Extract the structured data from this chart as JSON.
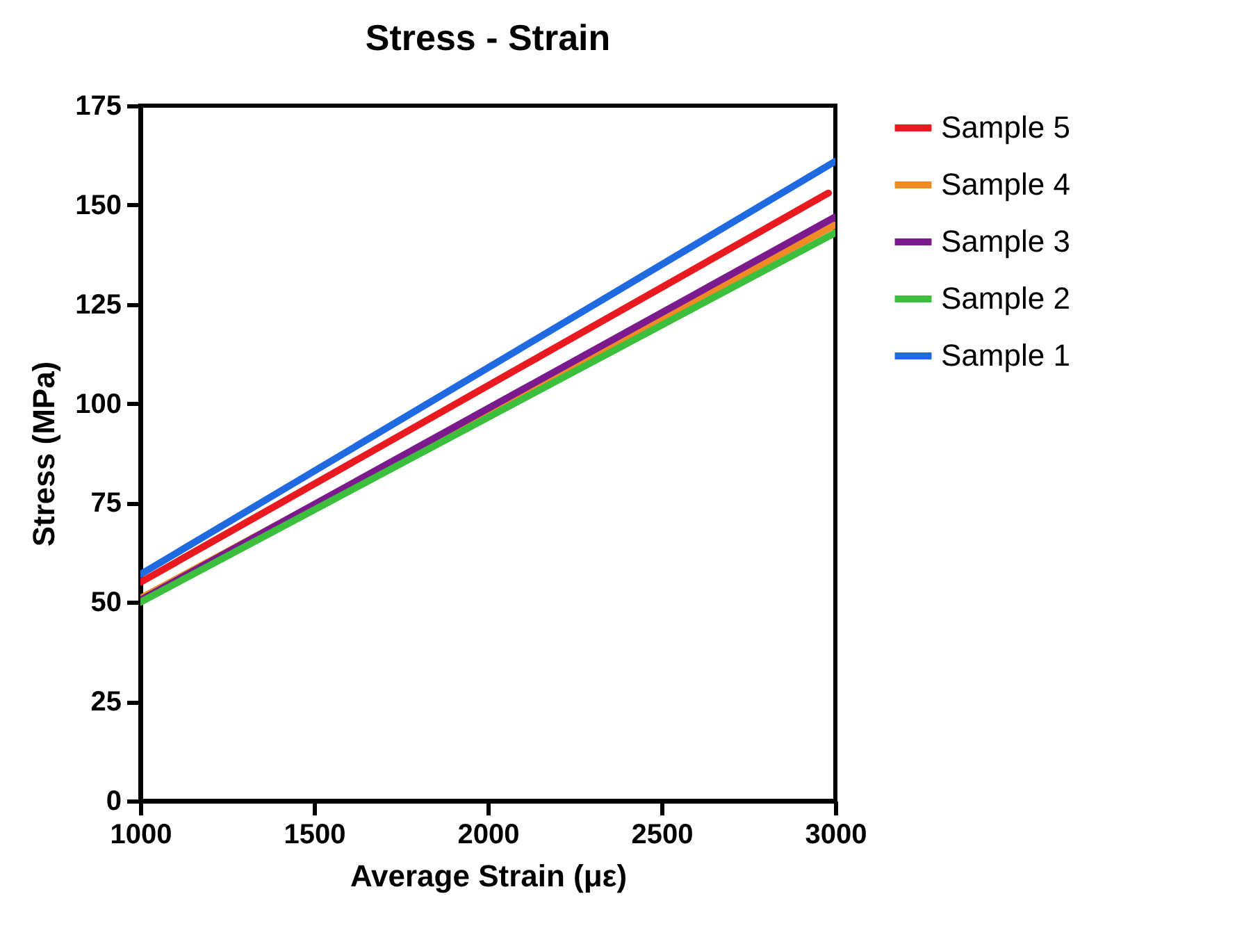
{
  "chart_data": {
    "type": "line",
    "title": "Stress - Strain",
    "xlabel": "Average Strain (με)",
    "ylabel": "Stress (MPa)",
    "series": [
      {
        "name": "Sample 5",
        "color": "#e8191f",
        "x": [
          1000,
          2980
        ],
        "values": [
          55,
          153
        ]
      },
      {
        "name": "Sample 4",
        "color": "#f08a24",
        "x": [
          1000,
          3000
        ],
        "values": [
          51,
          145
        ]
      },
      {
        "name": "Sample 3",
        "color": "#7b1a8c",
        "x": [
          1000,
          3000
        ],
        "values": [
          50.5,
          147
        ]
      },
      {
        "name": "Sample 2",
        "color": "#3cbf3c",
        "x": [
          1000,
          3000
        ],
        "values": [
          50,
          143
        ]
      },
      {
        "name": "Sample 1",
        "color": "#1f6ae0",
        "x": [
          1000,
          3000
        ],
        "values": [
          57,
          161
        ]
      }
    ],
    "xlim": [
      1000,
      3000
    ],
    "xticks": [
      1000,
      1500,
      2000,
      2500,
      3000
    ],
    "ylim": [
      0,
      175
    ],
    "yticks": [
      0,
      25,
      50,
      75,
      100,
      125,
      150,
      175
    ],
    "grid": false,
    "legend": "right",
    "line_style": "solid",
    "marker": "none"
  }
}
